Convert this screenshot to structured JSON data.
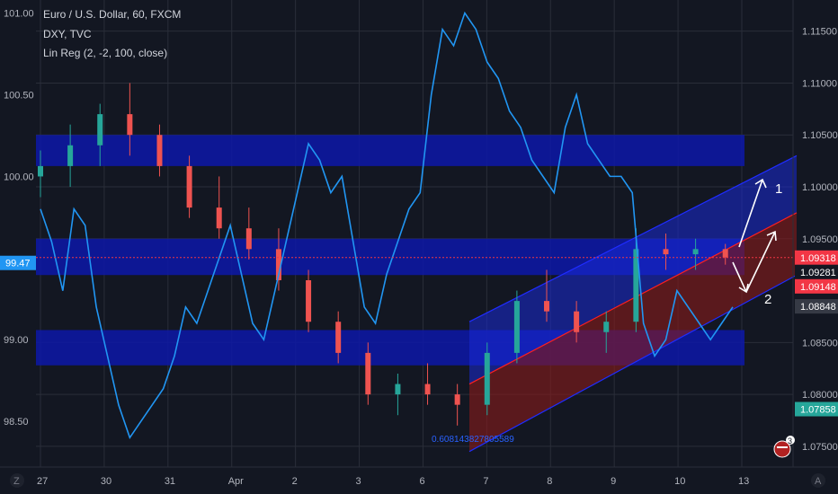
{
  "header": {
    "symbol": "Euro / U.S. Dollar, 60, FXCM",
    "overlay": "DXY, TVC",
    "indicator": "Lin Reg (2, -2, 100, close)"
  },
  "left_axis": {
    "ticks": [
      {
        "v": 101.0,
        "label": "101.00"
      },
      {
        "v": 100.5,
        "label": "100.50"
      },
      {
        "v": 100.0,
        "label": "100.00"
      },
      {
        "v": 99.0,
        "label": "99.00"
      },
      {
        "v": 98.5,
        "label": "98.50"
      }
    ],
    "current_label": "99.47",
    "current_value": 99.47
  },
  "right_axis": {
    "ticks": [
      {
        "v": 1.115,
        "label": "1.11500"
      },
      {
        "v": 1.11,
        "label": "1.11000"
      },
      {
        "v": 1.105,
        "label": "1.10500"
      },
      {
        "v": 1.1,
        "label": "1.10000"
      },
      {
        "v": 1.095,
        "label": "1.09500"
      },
      {
        "v": 1.085,
        "label": "1.08500"
      },
      {
        "v": 1.08,
        "label": "1.08000"
      },
      {
        "v": 1.075,
        "label": "1.07500"
      }
    ],
    "badges": [
      {
        "v": 1.09318,
        "label": "1.09318",
        "color": "#f23645"
      },
      {
        "v": 1.09281,
        "label": "1.09281",
        "color": "#131722"
      },
      {
        "v": 1.09148,
        "label": "1.09148",
        "color": "#f23645"
      },
      {
        "v": 1.08848,
        "label": "1.08848",
        "color": "#363a45"
      },
      {
        "v": 1.07858,
        "label": "1.07858",
        "color": "#26a69a"
      }
    ]
  },
  "time_axis": {
    "ticks": [
      "27",
      "30",
      "31",
      "Apr",
      "2",
      "3",
      "6",
      "7",
      "8",
      "9",
      "10",
      "13"
    ]
  },
  "annotations": {
    "arrow1_label": "1",
    "arrow2_label": "2",
    "channel_value": "0.608143827805589"
  },
  "zones": [
    {
      "top": 1.105,
      "bottom": 1.102
    },
    {
      "top": 1.095,
      "bottom": 1.0915
    },
    {
      "top": 1.0862,
      "bottom": 1.0828
    }
  ],
  "colors": {
    "background": "#131722",
    "grid": "#2a2e39",
    "up": "#26a69a",
    "down": "#ef5350",
    "dxy": "#2196f3",
    "zone": "#0d17a8",
    "channel_upper": "#1f2cff",
    "channel_mid": "#ff1f1f",
    "axis_text": "#b2b5be"
  },
  "buttons": {
    "zoom_label": "Z",
    "auto_label": "A",
    "events_badge": "3"
  },
  "chart_data": {
    "type": "candlestick",
    "eurusd_range": [
      1.073,
      1.118
    ],
    "dxy_range": [
      98.22,
      101.08
    ],
    "dxy_series": [
      [
        0,
        99.8
      ],
      [
        3,
        99.6
      ],
      [
        6,
        99.3
      ],
      [
        9,
        99.8
      ],
      [
        12,
        99.7
      ],
      [
        15,
        99.2
      ],
      [
        18,
        98.9
      ],
      [
        21,
        98.6
      ],
      [
        24,
        98.4
      ],
      [
        27,
        98.5
      ],
      [
        30,
        98.6
      ],
      [
        33,
        98.7
      ],
      [
        36,
        98.9
      ],
      [
        39,
        99.2
      ],
      [
        42,
        99.1
      ],
      [
        45,
        99.3
      ],
      [
        48,
        99.5
      ],
      [
        51,
        99.7
      ],
      [
        54,
        99.4
      ],
      [
        57,
        99.1
      ],
      [
        60,
        99.0
      ],
      [
        63,
        99.3
      ],
      [
        66,
        99.6
      ],
      [
        69,
        99.9
      ],
      [
        72,
        100.2
      ],
      [
        75,
        100.1
      ],
      [
        78,
        99.9
      ],
      [
        81,
        100.0
      ],
      [
        84,
        99.6
      ],
      [
        87,
        99.2
      ],
      [
        90,
        99.1
      ],
      [
        93,
        99.4
      ],
      [
        96,
        99.6
      ],
      [
        99,
        99.8
      ],
      [
        102,
        99.9
      ],
      [
        105,
        100.5
      ],
      [
        108,
        100.9
      ],
      [
        111,
        100.8
      ],
      [
        114,
        101.0
      ],
      [
        117,
        100.9
      ],
      [
        120,
        100.7
      ],
      [
        123,
        100.6
      ],
      [
        126,
        100.4
      ],
      [
        129,
        100.3
      ],
      [
        132,
        100.1
      ],
      [
        135,
        100.0
      ],
      [
        138,
        99.9
      ],
      [
        141,
        100.3
      ],
      [
        144,
        100.5
      ],
      [
        147,
        100.2
      ],
      [
        150,
        100.1
      ],
      [
        153,
        100.0
      ],
      [
        156,
        100.0
      ],
      [
        159,
        99.9
      ],
      [
        162,
        99.1
      ],
      [
        165,
        98.9
      ],
      [
        168,
        99.0
      ],
      [
        171,
        99.3
      ],
      [
        174,
        99.2
      ],
      [
        177,
        99.1
      ],
      [
        180,
        99.0
      ],
      [
        183,
        99.1
      ],
      [
        186,
        99.2
      ]
    ],
    "eurusd_ohlc": [
      [
        0,
        1.101,
        1.1035,
        1.099,
        1.102
      ],
      [
        8,
        1.102,
        1.106,
        1.1,
        1.104
      ],
      [
        16,
        1.104,
        1.108,
        1.102,
        1.107
      ],
      [
        24,
        1.107,
        1.11,
        1.103,
        1.105
      ],
      [
        32,
        1.105,
        1.106,
        1.101,
        1.102
      ],
      [
        40,
        1.102,
        1.103,
        1.097,
        1.098
      ],
      [
        48,
        1.098,
        1.101,
        1.095,
        1.096
      ],
      [
        56,
        1.096,
        1.098,
        1.093,
        1.094
      ],
      [
        64,
        1.094,
        1.096,
        1.09,
        1.091
      ],
      [
        72,
        1.091,
        1.092,
        1.086,
        1.087
      ],
      [
        80,
        1.087,
        1.088,
        1.083,
        1.084
      ],
      [
        88,
        1.084,
        1.085,
        1.079,
        1.08
      ],
      [
        96,
        1.08,
        1.082,
        1.078,
        1.081
      ],
      [
        104,
        1.081,
        1.083,
        1.079,
        1.08
      ],
      [
        112,
        1.08,
        1.081,
        1.077,
        1.079
      ],
      [
        120,
        1.079,
        1.085,
        1.078,
        1.084
      ],
      [
        128,
        1.084,
        1.09,
        1.083,
        1.089
      ],
      [
        136,
        1.089,
        1.092,
        1.087,
        1.088
      ],
      [
        144,
        1.088,
        1.089,
        1.085,
        1.086
      ],
      [
        152,
        1.086,
        1.088,
        1.084,
        1.087
      ],
      [
        160,
        1.087,
        1.096,
        1.086,
        1.094
      ],
      [
        168,
        1.094,
        1.0955,
        1.092,
        1.0935
      ],
      [
        176,
        1.0935,
        1.095,
        1.092,
        1.094
      ],
      [
        184,
        1.094,
        1.0945,
        1.0925,
        1.0932
      ]
    ],
    "channel": {
      "x": [
        0,
        100
      ],
      "upper": [
        1.087,
        1.103
      ],
      "mid": [
        1.081,
        1.0975
      ],
      "lower": [
        1.0745,
        1.0915
      ]
    }
  }
}
